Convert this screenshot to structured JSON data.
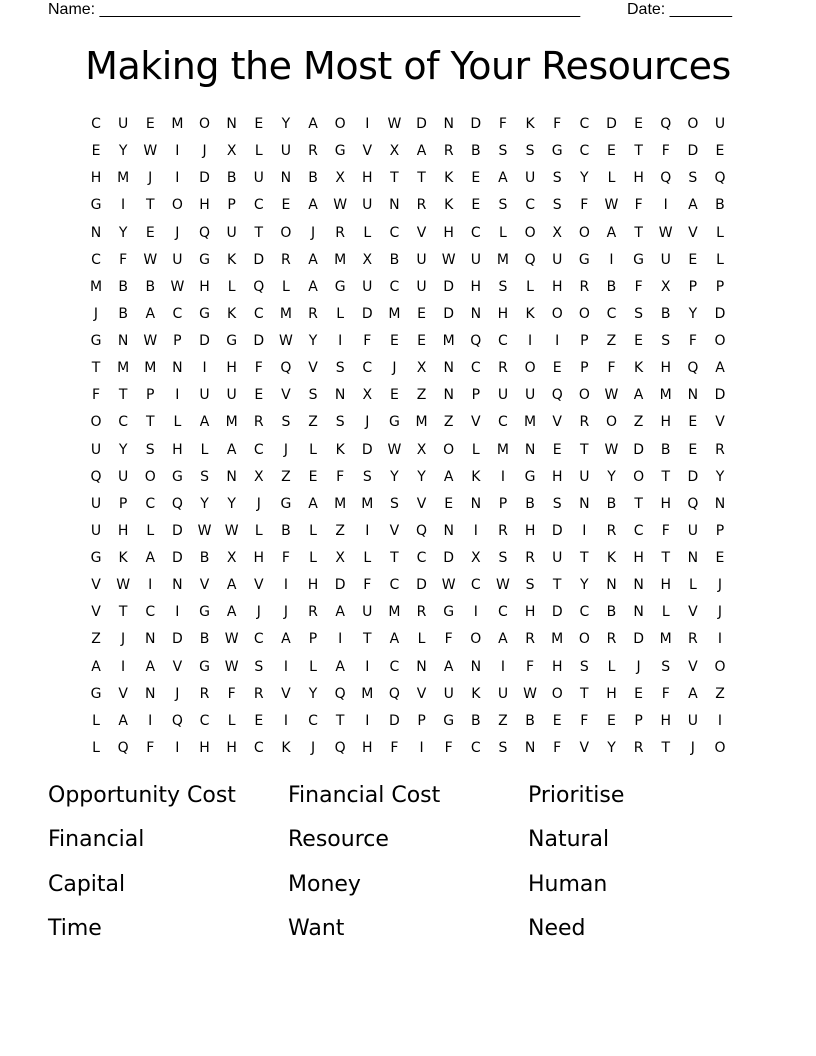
{
  "header": {
    "name_label": "Name: ______________________________________________________",
    "date_label": "Date: _______"
  },
  "title": "Making the Most of Your Resources",
  "grid": [
    "CUEMONEYAOIWDNDFKFCDEQOU",
    "EYWIJXLURGVXARBSSGCETFDE",
    "HMJIDBUNBXHTTKEAUSYLHQSQ",
    "GITOHPCEAWUNRKESCSFWFIAB",
    "NYEJQUTOJRLCVHCLOXOATWVL",
    "CFWUGKDRAMXBUWUMQUGIGUEL",
    "MBBWHLQLAGUCUDHSLHRBFXPP",
    "JBACGKCMRLDMEDNHKOOCSBYD",
    "GNWPDGDWYIFEEMQCIIPZESFO",
    "TMMNIHFQVSCJXNCROEPFKHQA",
    "FTPIUUEVSNXEZNPUUQOWAMND",
    "OCTLAMRSZSJGMZVCMVROZHEV",
    "UYSHLACJLKDWXOLMNETWDBER",
    "QUOGSNXZEFSYYAKIGHUYOTDY",
    "UPCQYYJGAMMSVENPBSNBTHQN",
    "UHLDWWLBLZIVQNIRHDIRCFUP",
    "GKADBXHFLXLTCDXSRUTKHTNE",
    "VWINVAVIHDFCDWCWSTYNNHLJ",
    "VTCIGAJJRAUMRGICHDCBNLVJ",
    "ZJNDBWCAPITALFOARMORDMRI",
    "AIAVGWSILAICNANIFHSLJSVO",
    "GVNJRFRVYQMQVUKUWOTHEFAZ",
    "LAIQCLEICTIDPGBZBEFEPHUI",
    "LQFIHHCKJQHFIFCSNFVYRTJO"
  ],
  "words": [
    "Opportunity Cost",
    "Financial Cost",
    "Prioritise",
    "Financial",
    "Resource",
    "Natural",
    "Capital",
    "Money",
    "Human",
    "Time",
    "Want",
    "Need"
  ]
}
